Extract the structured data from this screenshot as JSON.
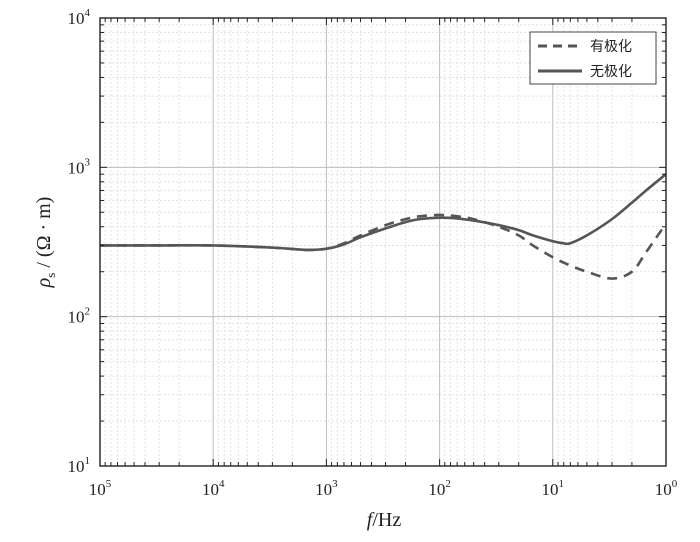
{
  "chart_data": {
    "type": "line",
    "xlabel": {
      "italic": "f",
      "rest": "/Hz"
    },
    "ylabel": {
      "italic": "ρ",
      "sub": "s",
      "rest": " / (Ω · m)"
    },
    "x_scale": "log",
    "y_scale": "log",
    "x_reversed": true,
    "xlim": [
      100000,
      1
    ],
    "ylim": [
      10,
      10000
    ],
    "grid": true,
    "legend_position": "top-right",
    "x_ticks": [
      {
        "base": "10",
        "exp": "5"
      },
      {
        "base": "10",
        "exp": "4"
      },
      {
        "base": "10",
        "exp": "3"
      },
      {
        "base": "10",
        "exp": "2"
      },
      {
        "base": "10",
        "exp": "1"
      },
      {
        "base": "10",
        "exp": "0"
      }
    ],
    "y_ticks": [
      {
        "base": "10",
        "exp": "1"
      },
      {
        "base": "10",
        "exp": "2"
      },
      {
        "base": "10",
        "exp": "3"
      },
      {
        "base": "10",
        "exp": "4"
      }
    ],
    "series": [
      {
        "name": "有极化",
        "style": "dashed",
        "color": "#555555",
        "x": [
          100000,
          30000,
          10000,
          3000,
          1500,
          1000,
          700,
          500,
          300,
          200,
          150,
          100,
          70,
          50,
          30,
          20,
          15,
          10,
          7,
          5,
          3,
          2,
          1.5,
          1
        ],
        "y": [
          300,
          300,
          300,
          290,
          280,
          285,
          310,
          350,
          410,
          450,
          470,
          480,
          470,
          450,
          400,
          350,
          300,
          250,
          220,
          200,
          180,
          200,
          270,
          420
        ]
      },
      {
        "name": "无极化",
        "style": "solid",
        "color": "#555555",
        "x": [
          100000,
          30000,
          10000,
          3000,
          1500,
          1000,
          700,
          500,
          300,
          200,
          150,
          100,
          70,
          50,
          30,
          20,
          15,
          10,
          8,
          7,
          5,
          3,
          2,
          1.5,
          1
        ],
        "y": [
          300,
          300,
          300,
          290,
          280,
          285,
          305,
          340,
          390,
          430,
          450,
          460,
          455,
          440,
          410,
          380,
          350,
          320,
          310,
          310,
          350,
          450,
          580,
          700,
          900
        ]
      }
    ]
  }
}
